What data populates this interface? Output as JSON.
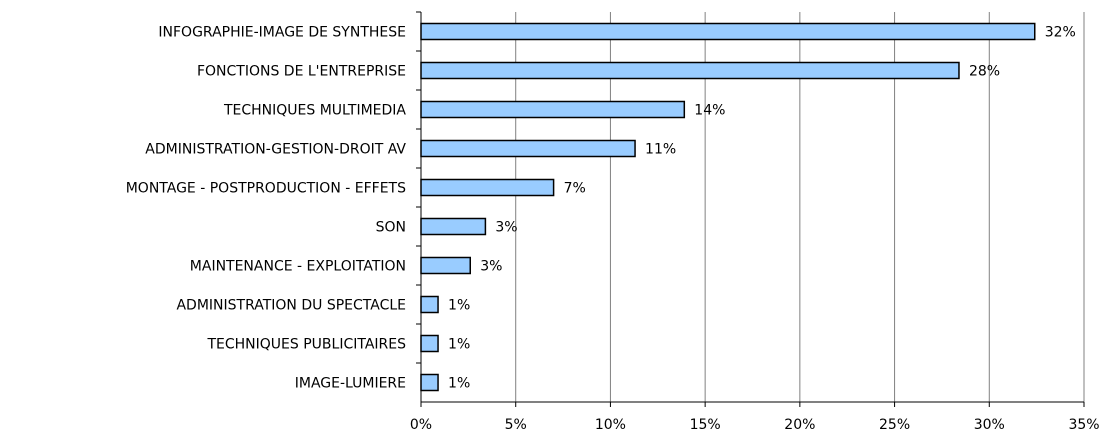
{
  "chart_data": {
    "type": "bar",
    "orientation": "horizontal",
    "categories": [
      "INFOGRAPHIE-IMAGE DE SYNTHESE",
      "FONCTIONS DE L'ENTREPRISE",
      "TECHNIQUES MULTIMEDIA",
      "ADMINISTRATION-GESTION-DROIT AV",
      "MONTAGE - POSTPRODUCTION - EFFETS",
      "SON",
      "MAINTENANCE - EXPLOITATION",
      "ADMINISTRATION DU SPECTACLE",
      "TECHNIQUES PUBLICITAIRES",
      "IMAGE-LUMIERE"
    ],
    "values": [
      32.4,
      28.4,
      13.9,
      11.3,
      7.0,
      3.4,
      2.6,
      0.9,
      0.9,
      0.9
    ],
    "value_labels": [
      "32%",
      "28%",
      "14%",
      "11%",
      "7%",
      "3%",
      "3%",
      "1%",
      "1%",
      "1%"
    ],
    "color": "#99ccff",
    "xlim": [
      0,
      35
    ],
    "xticks": [
      {
        "value": 0,
        "label": "0%"
      },
      {
        "value": 5,
        "label": "5%"
      },
      {
        "value": 10,
        "label": "10%"
      },
      {
        "value": 15,
        "label": "15%"
      },
      {
        "value": 20,
        "label": "20%"
      },
      {
        "value": 25,
        "label": "25%"
      },
      {
        "value": 30,
        "label": "30%"
      },
      {
        "value": 35,
        "label": "35%"
      }
    ],
    "grid": true
  }
}
